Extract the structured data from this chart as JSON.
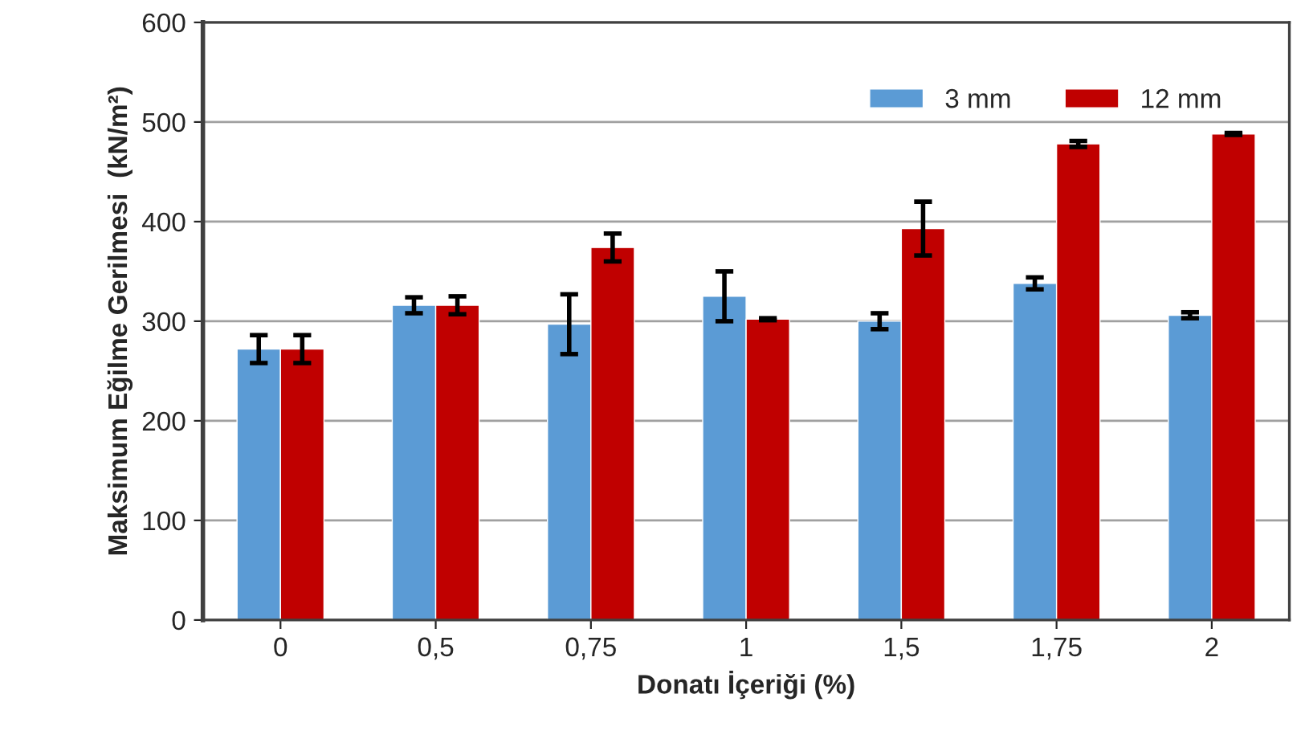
{
  "chart_data": {
    "type": "bar",
    "xlabel": "Donatı İçeriği (%)",
    "ylabel": "Maksimum Eğilme Gerilmesi  (kN/m²)",
    "categories": [
      "0",
      "0,5",
      "0,75",
      "1",
      "1,5",
      "1,75",
      "2"
    ],
    "series": [
      {
        "name": "3 mm",
        "color": "#5b9bd5",
        "values": [
          272,
          316,
          297,
          325,
          300,
          338,
          306
        ],
        "errors": [
          14,
          8,
          30,
          25,
          8,
          6,
          3
        ]
      },
      {
        "name": "12 mm",
        "color": "#c00000",
        "values": [
          272,
          316,
          374,
          302,
          393,
          478,
          488
        ],
        "errors": [
          14,
          9,
          14,
          1,
          27,
          3,
          1
        ]
      }
    ],
    "ylim": [
      0,
      600
    ],
    "yticks": [
      0,
      100,
      200,
      300,
      400,
      500,
      600
    ],
    "grid": "y",
    "legend": "top right"
  }
}
